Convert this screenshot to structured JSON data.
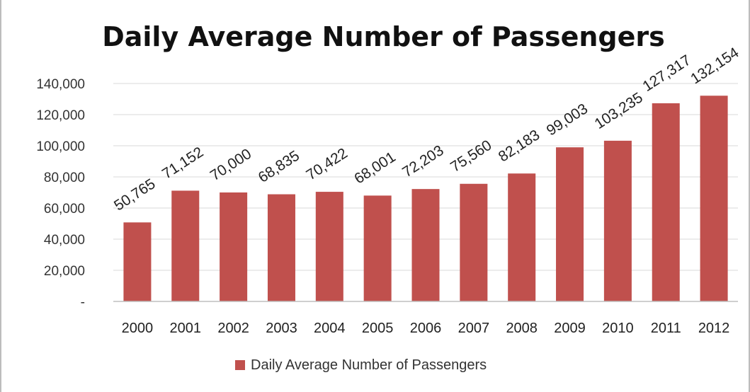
{
  "chart_data": {
    "type": "bar",
    "title": "Daily Average Number of Passengers",
    "categories": [
      "2000",
      "2001",
      "2002",
      "2003",
      "2004",
      "2005",
      "2006",
      "2007",
      "2008",
      "2009",
      "2010",
      "2011",
      "2012"
    ],
    "series": [
      {
        "name": "Daily Average Number of Passengers",
        "values": [
          50765,
          71152,
          70000,
          68835,
          70422,
          68001,
          72203,
          75560,
          82183,
          99003,
          103235,
          127317,
          132154
        ],
        "data_labels": [
          "50,765",
          "71,152",
          "70,000",
          "68,835",
          "70,422",
          "68,001",
          "72,203",
          "75,560",
          "82,183",
          "99,003",
          "103,235",
          "127,317",
          "132,154"
        ],
        "color": "#c0504d"
      }
    ],
    "ylim": [
      0,
      140000
    ],
    "y_ticks": [
      0,
      20000,
      40000,
      60000,
      80000,
      100000,
      120000,
      140000
    ],
    "y_tick_labels": [
      "-",
      "20,000",
      "40,000",
      "60,000",
      "80,000",
      "100,000",
      "120,000",
      "140,000"
    ],
    "xlabel": "",
    "ylabel": "",
    "grid": true,
    "legend_position": "bottom"
  },
  "colors": {
    "bar": "#c0504d",
    "grid": "#d9d9d9"
  }
}
